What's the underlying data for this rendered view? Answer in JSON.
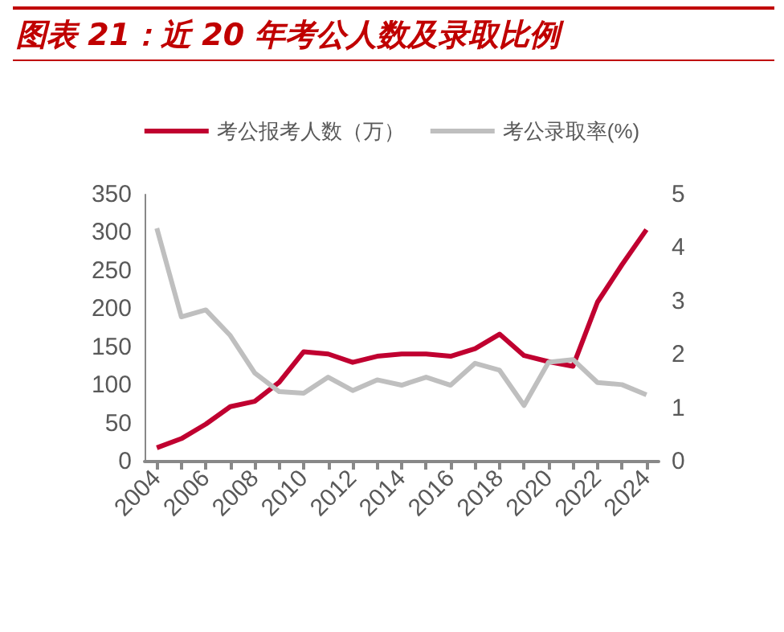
{
  "chart_data": {
    "type": "line",
    "title": "图表 21：近 20 年考公人数及录取比例",
    "categories": [
      "2004",
      null,
      "2006",
      null,
      "2008",
      null,
      "2010",
      null,
      "2012",
      null,
      "2014",
      null,
      "2016",
      null,
      "2018",
      null,
      "2020",
      null,
      "2022",
      null,
      "2024"
    ],
    "series": [
      {
        "name": "考公报考人数（万）",
        "color": "#c00030",
        "values": [
          18,
          30,
          49,
          72,
          79,
          104,
          144,
          141,
          130,
          138,
          141,
          141,
          138,
          148,
          167,
          139,
          131,
          125,
          209,
          258,
          304
        ]
      },
      {
        "name": "考公录取率(%)",
        "color": "#bfbfbf",
        "axis": "y2",
        "values": [
          4.37,
          2.71,
          2.84,
          2.36,
          1.66,
          1.31,
          1.28,
          1.58,
          1.33,
          1.53,
          1.43,
          1.58,
          1.43,
          1.84,
          1.71,
          1.05,
          1.86,
          1.91,
          1.48,
          1.44,
          1.25
        ]
      }
    ],
    "ylim": [
      0,
      350
    ],
    "yticks": [
      0,
      50,
      100,
      150,
      200,
      250,
      300,
      350
    ],
    "y2lim": [
      0,
      5
    ],
    "y2ticks": [
      0,
      1,
      2,
      3,
      4,
      5
    ],
    "grid": false,
    "legend": "top",
    "marker": "none",
    "line_style": "solid"
  }
}
